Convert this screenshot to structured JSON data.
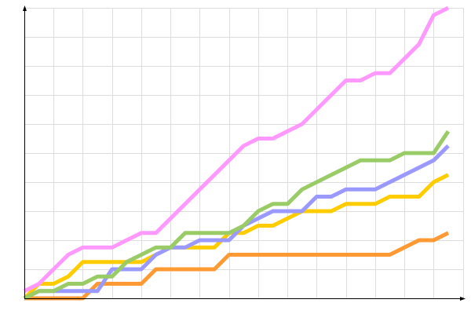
{
  "chart_data": {
    "type": "line",
    "title": "",
    "xlabel": "",
    "ylabel": "",
    "xlim": [
      0,
      29
    ],
    "ylim": [
      0,
      10
    ],
    "grid": true,
    "legend": "none",
    "x": [
      0,
      1,
      2,
      3,
      4,
      5,
      6,
      7,
      8,
      9,
      10,
      11,
      12,
      13,
      14,
      15,
      16,
      17,
      18,
      19,
      20,
      21,
      22,
      23,
      24,
      25,
      26,
      27,
      28,
      29
    ],
    "series": [
      {
        "color": "#ff99ff",
        "values": [
          0.25,
          0.5,
          1,
          1.5,
          1.75,
          1.75,
          1.75,
          2,
          2.25,
          2.25,
          2.75,
          3.25,
          3.75,
          4.25,
          4.75,
          5.25,
          5.5,
          5.5,
          5.75,
          6,
          6.5,
          7,
          7.5,
          7.5,
          7.75,
          7.75,
          8.25,
          8.75,
          9.75,
          10
        ]
      },
      {
        "color": "#99cc66",
        "values": [
          0,
          0.25,
          0.25,
          0.5,
          0.5,
          0.75,
          0.75,
          1.25,
          1.5,
          1.75,
          1.75,
          2.25,
          2.25,
          2.25,
          2.25,
          2.5,
          3,
          3.25,
          3.25,
          3.75,
          4,
          4.25,
          4.5,
          4.75,
          4.75,
          4.75,
          5,
          5,
          5,
          5.75
        ]
      },
      {
        "color": "#9999ff",
        "values": [
          0,
          0.25,
          0.25,
          0.25,
          0.25,
          0.25,
          1,
          1,
          1,
          1.5,
          1.75,
          1.75,
          2,
          2,
          2,
          2.5,
          2.75,
          3,
          3,
          3,
          3.5,
          3.5,
          3.75,
          3.75,
          3.75,
          4,
          4.25,
          4.5,
          4.75,
          5.25
        ]
      },
      {
        "color": "#ffcc00",
        "values": [
          0,
          0.5,
          0.5,
          0.75,
          1.25,
          1.25,
          1.25,
          1.25,
          1.25,
          1.5,
          1.75,
          1.75,
          1.75,
          1.75,
          2.25,
          2.25,
          2.5,
          2.5,
          2.75,
          3,
          3,
          3,
          3.25,
          3.25,
          3.25,
          3.5,
          3.5,
          3.5,
          4,
          4.25
        ]
      },
      {
        "color": "#ff9933",
        "values": [
          0,
          0,
          0,
          0,
          0,
          0.5,
          0.5,
          0.5,
          0.5,
          1,
          1,
          1,
          1,
          1,
          1.5,
          1.5,
          1.5,
          1.5,
          1.5,
          1.5,
          1.5,
          1.5,
          1.5,
          1.5,
          1.5,
          1.5,
          1.75,
          2,
          2,
          2.25
        ]
      }
    ]
  }
}
